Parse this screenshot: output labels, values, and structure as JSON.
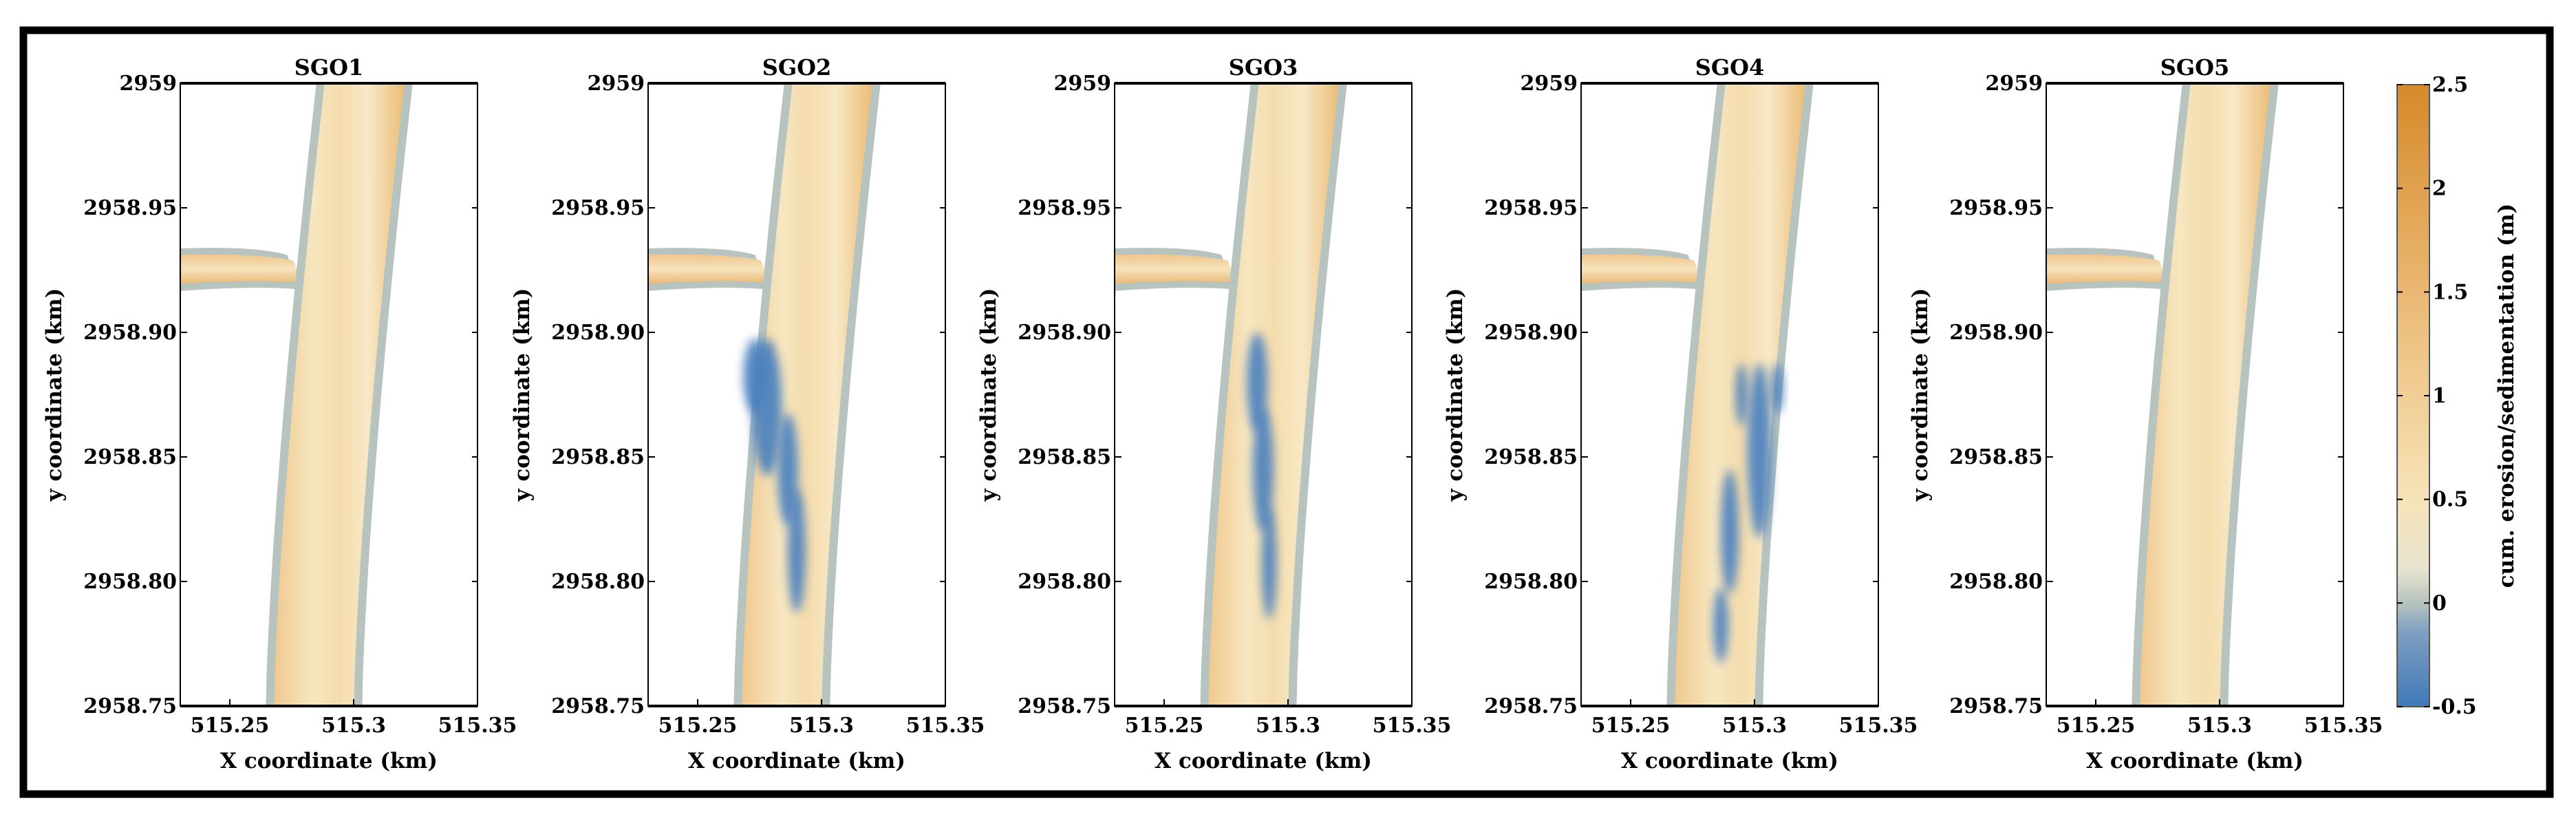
{
  "chart_data": {
    "type": "heatmap",
    "panels": [
      {
        "title": "SGO1",
        "xlabel": "X coordinate (km)",
        "ylabel": "y coordinate (km)"
      },
      {
        "title": "SGO2",
        "xlabel": "X coordinate (km)",
        "ylabel": "y coordinate (km)"
      },
      {
        "title": "SGO3",
        "xlabel": "X coordinate (km)",
        "ylabel": "y coordinate (km)"
      },
      {
        "title": "SGO4",
        "xlabel": "X coordinate (km)",
        "ylabel": "y coordinate (km)"
      },
      {
        "title": "SGO5",
        "xlabel": "X coordinate (km)",
        "ylabel": "y coordinate (km)"
      }
    ],
    "x_ticks": [
      "515.25",
      "515.3",
      "515.35"
    ],
    "y_ticks": [
      "2959",
      "2958.95",
      "2958.90",
      "2958.85",
      "2958.80",
      "2958.75"
    ],
    "xlim": [
      515.23,
      515.35
    ],
    "ylim": [
      2958.75,
      2959.0
    ],
    "colorbar": {
      "label": "cum. erosion/sedimentation (m)",
      "range": [
        -0.5,
        2.5
      ],
      "ticks": [
        "2.5",
        "2",
        "1.5",
        "1",
        "0.5",
        "0",
        "-0.5"
      ],
      "colors": {
        "low": "#3f78b9",
        "zero": "#b6c3bf",
        "mid": "#f6e3b8",
        "high": "#d68a2a"
      }
    }
  }
}
